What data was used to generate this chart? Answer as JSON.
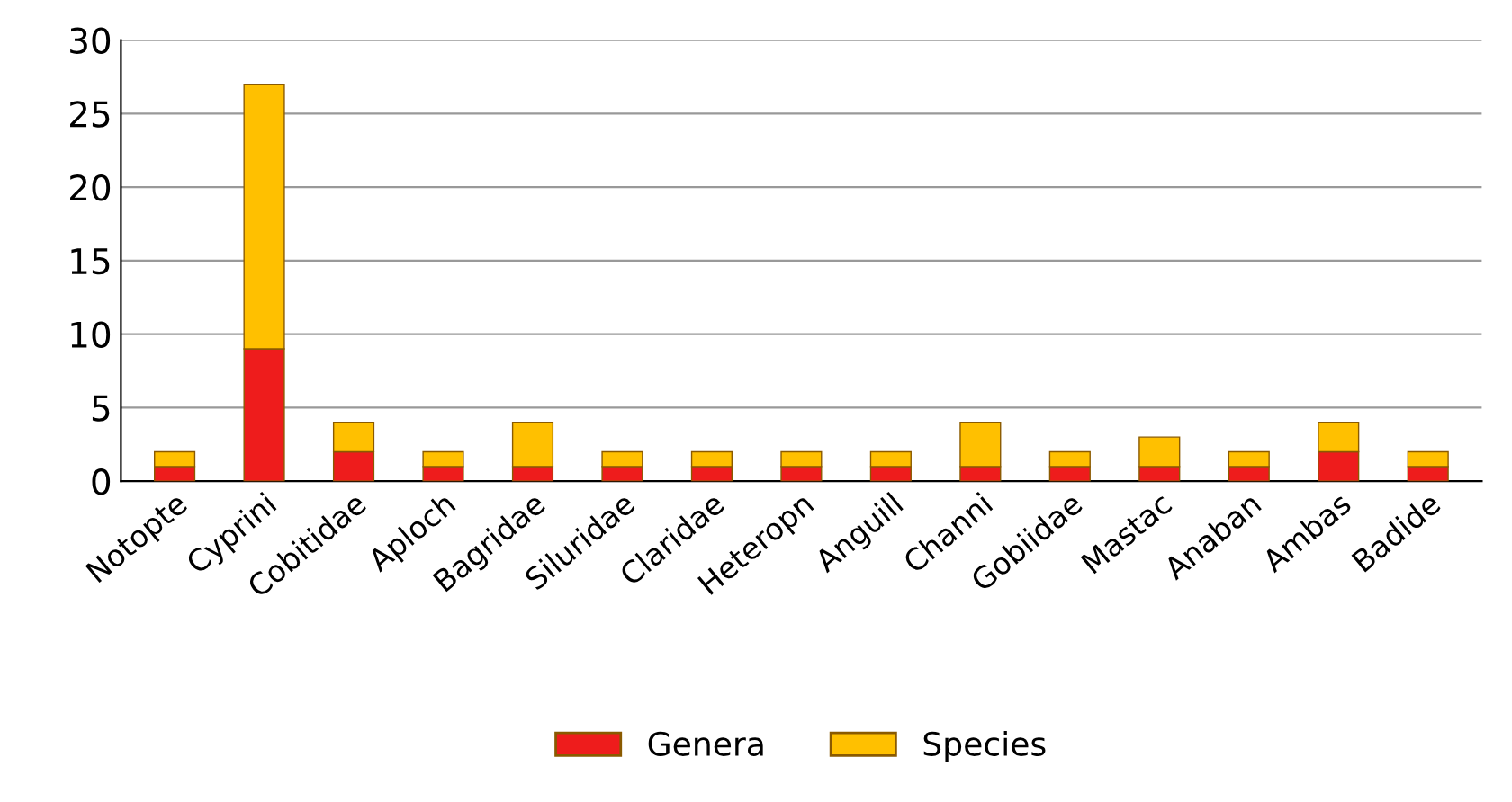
{
  "chart_data": {
    "type": "bar",
    "stacked": true,
    "categories": [
      "Notopte",
      "Cyprini",
      "Cobitidae",
      "Aploch",
      "Bagridae",
      "Siluridae",
      "Claridae",
      "Heteropn",
      "Anguill",
      "Channi",
      "Gobiidae",
      "Mastac",
      "Anaban",
      "Ambas",
      "Badide"
    ],
    "series": [
      {
        "name": "Genera",
        "color": "#ee1c1c",
        "values": [
          1,
          9,
          2,
          1,
          1,
          1,
          1,
          1,
          1,
          1,
          1,
          1,
          1,
          2,
          1
        ]
      },
      {
        "name": "Species",
        "color": "#ffc000",
        "values": [
          1,
          18,
          2,
          1,
          3,
          1,
          1,
          1,
          1,
          3,
          1,
          2,
          1,
          2,
          1
        ]
      }
    ],
    "ylim": [
      0,
      30
    ],
    "yticks": [
      0,
      5,
      10,
      15,
      20,
      25,
      30
    ],
    "grid": "y",
    "legend": "bottom"
  }
}
